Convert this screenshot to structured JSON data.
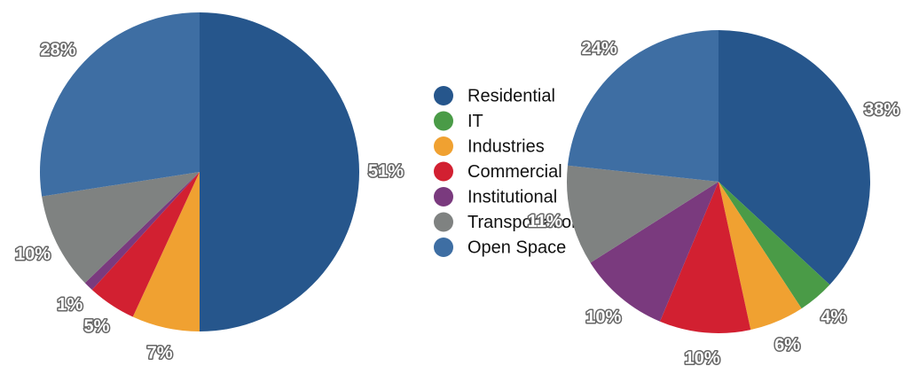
{
  "chart_data": [
    {
      "type": "pie",
      "categories": [
        "Residential",
        "IT",
        "Industries",
        "Commercial",
        "Institutional",
        "Transportation",
        "Open Space"
      ],
      "values": [
        51,
        0,
        7,
        5,
        1,
        10,
        28
      ],
      "value_labels": [
        "51%",
        null,
        "7%",
        "5%",
        "1%",
        "10%",
        "28%"
      ],
      "colors": [
        "#26568c",
        "#4a9b47",
        "#f0a131",
        "#d22031",
        "#7a3a7e",
        "#7f8281",
        "#3e6ea3"
      ],
      "legend": "center"
    },
    {
      "type": "pie",
      "categories": [
        "Residential",
        "IT",
        "Industries",
        "Commercial",
        "Institutional",
        "Transportation",
        "Open Space"
      ],
      "values": [
        38,
        4,
        6,
        10,
        10,
        11,
        24
      ],
      "value_labels": [
        "38%",
        "4%",
        "6%",
        "10%",
        "10%",
        "11%",
        "24%"
      ],
      "colors": [
        "#26568c",
        "#4a9b47",
        "#f0a131",
        "#d22031",
        "#7a3a7e",
        "#7f8281",
        "#3e6ea3"
      ]
    }
  ]
}
